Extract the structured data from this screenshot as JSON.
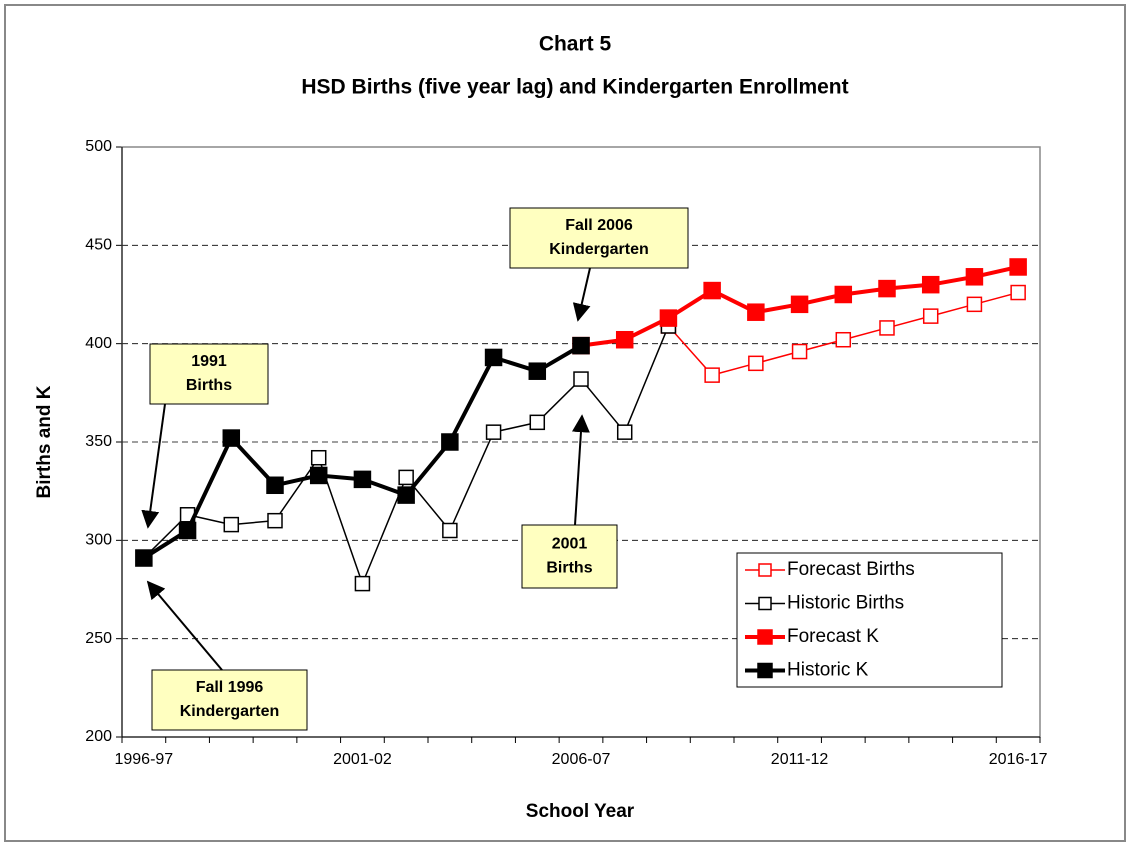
{
  "chart_data": {
    "type": "line",
    "title": "Chart 5",
    "subtitle": "HSD Births (five year lag) and Kindergarten Enrollment",
    "x_label": "School Year",
    "y_label": "Births and K",
    "categories": [
      "1996-97",
      null,
      null,
      null,
      null,
      "2001-02",
      null,
      null,
      null,
      null,
      "2006-07",
      null,
      null,
      null,
      null,
      "2011-12",
      null,
      null,
      null,
      null,
      "2016-17"
    ],
    "ylim": [
      200,
      500
    ],
    "yticks": [
      200,
      250,
      300,
      350,
      400,
      450,
      500
    ],
    "grid": true,
    "legend": "lower right",
    "series": [
      {
        "name": "Forecast Births",
        "color": "#ff0000",
        "filled": false,
        "values": [
          null,
          null,
          null,
          null,
          null,
          null,
          null,
          null,
          null,
          null,
          null,
          null,
          409,
          384,
          390,
          396,
          402,
          408,
          414,
          420,
          426
        ]
      },
      {
        "name": "Historic Births",
        "color": "#000000",
        "filled": false,
        "values": [
          291,
          313,
          308,
          310,
          342,
          278,
          332,
          305,
          355,
          360,
          382,
          355,
          409,
          null,
          null,
          null,
          null,
          null,
          null,
          null,
          null
        ]
      },
      {
        "name": "Forecast K",
        "color": "#ff0000",
        "filled": true,
        "values": [
          null,
          null,
          null,
          null,
          null,
          null,
          null,
          null,
          null,
          null,
          399,
          402,
          413,
          427,
          416,
          420,
          425,
          428,
          430,
          434,
          439
        ]
      },
      {
        "name": "Historic K",
        "color": "#000000",
        "filled": true,
        "values": [
          291,
          305,
          352,
          328,
          333,
          331,
          323,
          350,
          393,
          386,
          399,
          null,
          null,
          null,
          null,
          null,
          null,
          null,
          null,
          null,
          null
        ]
      }
    ],
    "annotations": [
      {
        "lines": [
          "Fall 2006",
          "Kindergarten"
        ]
      },
      {
        "lines": [
          "1991",
          "Births"
        ]
      },
      {
        "lines": [
          "2001",
          "Births"
        ]
      },
      {
        "lines": [
          "Fall 1996",
          "Kindergarten"
        ]
      }
    ]
  }
}
